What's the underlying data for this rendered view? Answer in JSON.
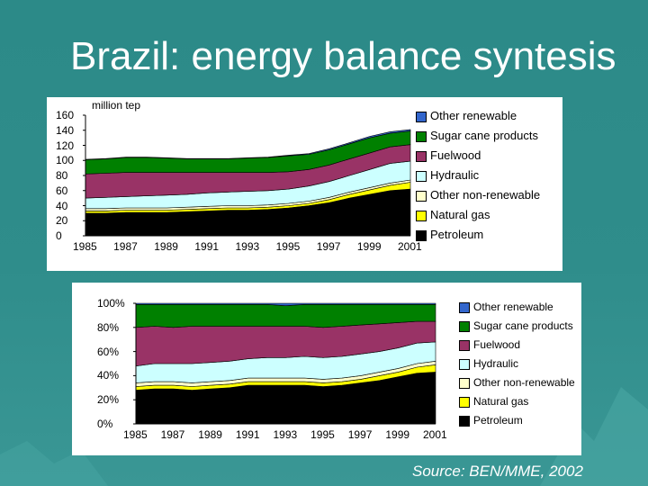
{
  "slide": {
    "title": "Brazil: energy balance syntesis",
    "source": "Source: BEN/MME, 2002"
  },
  "colors": {
    "petroleum": "#000000",
    "natural_gas": "#ffff00",
    "other_nonrenewable": "#ffffcc",
    "hydraulic": "#ccffff",
    "fuelwood": "#993366",
    "sugar_cane_products": "#008000",
    "other_renewable": "#3366cc"
  },
  "chart_data": [
    {
      "type": "area",
      "stacked": true,
      "ylabel": "million tep",
      "ylim": [
        0,
        160
      ],
      "yticks": [
        "160",
        "140",
        "120",
        "100",
        "80",
        "60",
        "40",
        "20",
        "0"
      ],
      "xtick_labels": [
        "1985",
        "1987",
        "1989",
        "1991",
        "1993",
        "1995",
        "1997",
        "1999",
        "2001"
      ],
      "x": [
        1985,
        1986,
        1987,
        1988,
        1989,
        1990,
        1991,
        1992,
        1993,
        1994,
        1995,
        1996,
        1997,
        1998,
        1999,
        2000,
        2001
      ],
      "series": [
        {
          "name": "Petroleum",
          "key": "petroleum",
          "values": [
            30,
            30,
            31,
            31,
            31,
            32,
            33,
            34,
            34,
            35,
            37,
            40,
            44,
            50,
            55,
            60,
            62
          ]
        },
        {
          "name": "Natural gas",
          "key": "natural_gas",
          "values": [
            3,
            3,
            3,
            3,
            3,
            3,
            3,
            3,
            3,
            3,
            3,
            3,
            4,
            5,
            6,
            7,
            9
          ]
        },
        {
          "name": "Other non-renewable",
          "key": "other_nonrenewable",
          "values": [
            3,
            3,
            3,
            3,
            3,
            3,
            3,
            3,
            3,
            3,
            3,
            3,
            3,
            3,
            3,
            3,
            3
          ]
        },
        {
          "name": "Hydraulic",
          "key": "hydraulic",
          "values": [
            14,
            15,
            15,
            16,
            17,
            17,
            18,
            18,
            19,
            19,
            19,
            20,
            21,
            22,
            24,
            26,
            25
          ]
        },
        {
          "name": "Fuelwood",
          "key": "fuelwood",
          "values": [
            32,
            32,
            32,
            31,
            30,
            29,
            27,
            26,
            25,
            24,
            23,
            22,
            22,
            22,
            22,
            22,
            22
          ]
        },
        {
          "name": "Sugar cane products",
          "key": "sugar_cane_products",
          "values": [
            19,
            19,
            20,
            20,
            19,
            18,
            18,
            18,
            19,
            20,
            21,
            20,
            20,
            20,
            20,
            18,
            18
          ]
        },
        {
          "name": "Other renewable",
          "key": "other_renewable",
          "values": [
            0.5,
            0.5,
            0.5,
            0.5,
            0.5,
            0.5,
            0.5,
            0.5,
            0.5,
            0.5,
            1,
            1,
            1.5,
            1.5,
            2,
            2,
            2
          ]
        }
      ]
    },
    {
      "type": "area",
      "stacked": true,
      "percent": true,
      "ylim": [
        0,
        100
      ],
      "yticks": [
        "100%",
        "80%",
        "60%",
        "40%",
        "20%",
        "0%"
      ],
      "xtick_labels": [
        "1985",
        "1987",
        "1989",
        "1991",
        "1993",
        "1995",
        "1997",
        "1999",
        "2001"
      ],
      "x": [
        1985,
        1986,
        1987,
        1988,
        1989,
        1990,
        1991,
        1992,
        1993,
        1994,
        1995,
        1996,
        1997,
        1998,
        1999,
        2000,
        2001
      ],
      "series": [
        {
          "name": "Petroleum",
          "key": "petroleum",
          "values": [
            28,
            29,
            29,
            28,
            29,
            30,
            32,
            32,
            32,
            32,
            31,
            32,
            34,
            36,
            39,
            42,
            43
          ]
        },
        {
          "name": "Natural gas",
          "key": "natural_gas",
          "values": [
            3,
            3,
            3,
            3,
            3,
            3,
            3,
            3,
            3,
            3,
            3,
            3,
            3,
            4,
            4,
            5,
            6
          ]
        },
        {
          "name": "Other non-renewable",
          "key": "other_nonrenewable",
          "values": [
            3,
            3,
            3,
            3,
            3,
            3,
            3,
            3,
            3,
            3,
            3,
            3,
            3,
            3,
            3,
            3,
            3
          ]
        },
        {
          "name": "Hydraulic",
          "key": "hydraulic",
          "values": [
            14,
            15,
            15,
            16,
            16,
            16,
            16,
            17,
            17,
            18,
            18,
            18,
            18,
            17,
            17,
            17,
            16
          ]
        },
        {
          "name": "Fuelwood",
          "key": "fuelwood",
          "values": [
            32,
            31,
            30,
            31,
            30,
            29,
            27,
            26,
            26,
            25,
            25,
            25,
            24,
            23,
            21,
            18,
            17
          ]
        },
        {
          "name": "Sugar cane products",
          "key": "sugar_cane_products",
          "values": [
            19,
            18,
            19,
            18,
            18,
            18,
            18,
            18,
            17,
            18,
            19,
            18,
            17,
            16,
            15,
            14,
            14
          ]
        },
        {
          "name": "Other renewable",
          "key": "other_renewable",
          "values": [
            1,
            1,
            1,
            1,
            1,
            1,
            1,
            1,
            2,
            1,
            1,
            1,
            1,
            1,
            1,
            1,
            1
          ]
        }
      ]
    }
  ],
  "legend": [
    {
      "label": "Other renewable",
      "key": "other_renewable"
    },
    {
      "label": "Sugar cane products",
      "key": "sugar_cane_products"
    },
    {
      "label": "Fuelwood",
      "key": "fuelwood"
    },
    {
      "label": "Hydraulic",
      "key": "hydraulic"
    },
    {
      "label": "Other non-renewable",
      "key": "other_nonrenewable"
    },
    {
      "label": "Natural gas",
      "key": "natural_gas"
    },
    {
      "label": "Petroleum",
      "key": "petroleum"
    }
  ]
}
